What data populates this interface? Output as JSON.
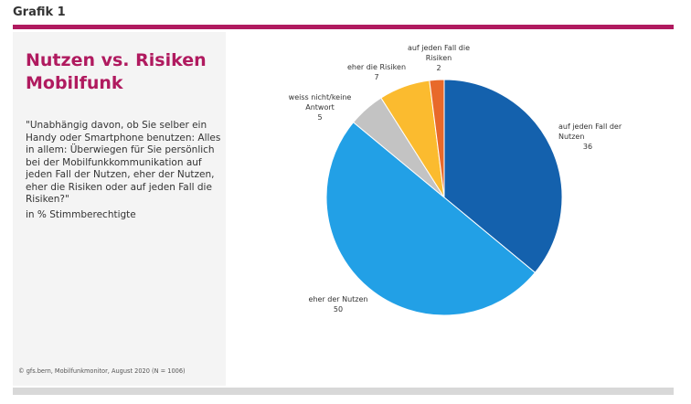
{
  "header": {
    "figure_label": "Grafik 1"
  },
  "title": "Nutzen vs. Risiken\nMobilfunk",
  "question": "\"Unabhängig davon, ob Sie selber ein Handy oder Smartphone benutzen: Alles in allem: Überwiegen für Sie persönlich bei der Mobilfunkkommunikation auf jeden Fall der Nutzen, eher der Nutzen, eher die Risiken oder auf jeden Fall die Risiken?\"",
  "unit_note": "in % Stimmberechtigte",
  "source": "© gfs.bern, Mobilfunkmonitor, August 2020 (N = 1006)",
  "colors": {
    "accent": "#b01a5f",
    "panel": "#f4f4f4",
    "bar": "#d8d8d8"
  },
  "chart_data": {
    "type": "pie",
    "unit": "%",
    "slices": [
      {
        "label": "auf jeden Fall der Nutzen",
        "label_lines": [
          "auf jeden Fall der",
          "Nutzen"
        ],
        "value": 36,
        "color": "#1461ad"
      },
      {
        "label": "eher der Nutzen",
        "label_lines": [
          "eher der Nutzen"
        ],
        "value": 50,
        "color": "#22a0e6"
      },
      {
        "label": "weiss nicht/keine Antwort",
        "label_lines": [
          "weiss nicht/keine",
          "Antwort"
        ],
        "value": 5,
        "color": "#c3c3c3"
      },
      {
        "label": "eher die Risiken",
        "label_lines": [
          "eher die Risiken"
        ],
        "value": 7,
        "color": "#fbbb2f"
      },
      {
        "label": "auf jeden Fall die Risiken",
        "label_lines": [
          "auf jeden Fall die",
          "Risiken"
        ],
        "value": 2,
        "color": "#e8692a"
      }
    ]
  }
}
